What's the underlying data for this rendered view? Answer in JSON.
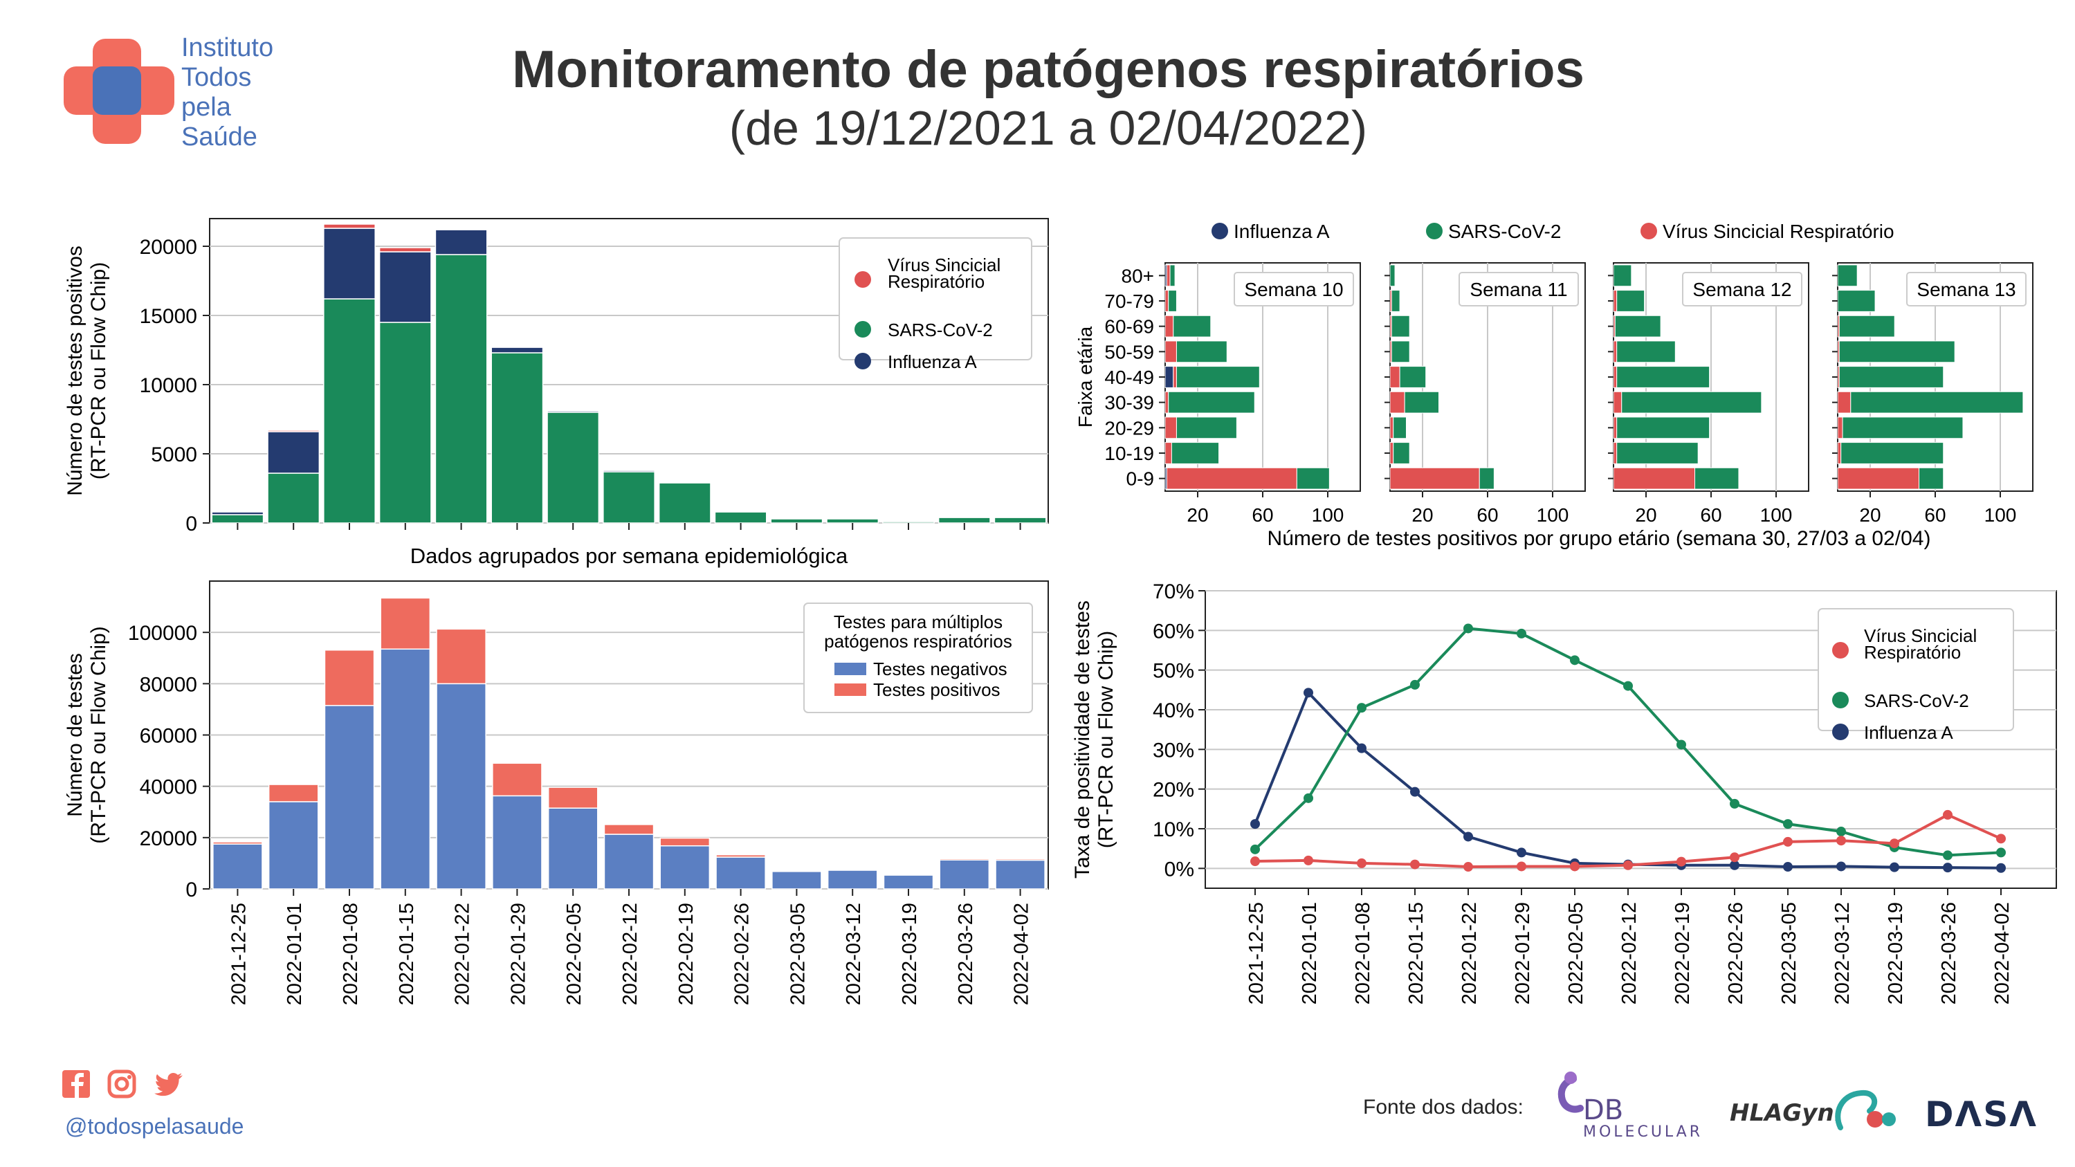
{
  "header": {
    "title": "Monitoramento de patógenos respiratórios",
    "subtitle": "(de 19/12/2021 a 02/04/2022)"
  },
  "logo": {
    "lines": [
      "Instituto",
      "Todos",
      "pela",
      "Saúde"
    ]
  },
  "footer": {
    "handle": "@todospelasaude",
    "source_label": "Fonte dos dados:",
    "social_icons": [
      "facebook-icon",
      "instagram-icon",
      "twitter-icon"
    ],
    "sponsors": [
      {
        "name": "DB",
        "sub": "MOLECULAR"
      },
      {
        "name": "HLAGyn."
      },
      {
        "name": "DΛSΛ"
      }
    ]
  },
  "colors": {
    "vsr": "#e05151",
    "sars": "#1a8a5a",
    "flu": "#243b70",
    "neg": "#5b7fc2",
    "pos": "#ee6b5e",
    "brand_blue": "#4a72b8",
    "brand_red": "#f26c5e"
  },
  "chart_data": [
    {
      "id": "positives_by_week",
      "type": "bar",
      "stacked": true,
      "xlabel": "Dados agrupados por semana epidemiológica",
      "ylabel": [
        "Número de testes positivos",
        "(RT-PCR ou Flow Chip)"
      ],
      "ylim": [
        0,
        22000
      ],
      "yticks": [
        0,
        5000,
        10000,
        15000,
        20000
      ],
      "grid": true,
      "legend_position": "top-right",
      "categories": [
        "2021-12-25",
        "2022-01-01",
        "2022-01-08",
        "2022-01-15",
        "2022-01-22",
        "2022-01-29",
        "2022-02-05",
        "2022-02-12",
        "2022-02-19",
        "2022-02-26",
        "2022-03-05",
        "2022-03-12",
        "2022-03-19",
        "2022-03-26",
        "2022-04-02"
      ],
      "series": [
        {
          "name": "SARS-CoV-2",
          "values": [
            600,
            3600,
            16200,
            14500,
            19400,
            12300,
            8000,
            3700,
            2900,
            800,
            300,
            300,
            100,
            400,
            400
          ]
        },
        {
          "name": "Influenza A",
          "values": [
            200,
            3000,
            5100,
            5100,
            1800,
            400,
            100,
            100,
            50,
            50,
            20,
            10,
            10,
            10,
            10
          ]
        },
        {
          "name": "Vírus Sincicial Respiratório",
          "values": [
            20,
            100,
            300,
            300,
            50,
            20,
            20,
            20,
            50,
            50,
            50,
            50,
            40,
            40,
            30
          ]
        }
      ],
      "legend": [
        "Vírus Sincicial Respiratório",
        "SARS-CoV-2",
        "Influenza A"
      ]
    },
    {
      "id": "tests_by_week",
      "type": "bar",
      "stacked": true,
      "ylabel": [
        "Número de testes",
        "(RT-PCR ou Flow Chip)"
      ],
      "ylim": [
        0,
        120000
      ],
      "yticks": [
        0,
        20000,
        40000,
        60000,
        80000,
        100000
      ],
      "grid": true,
      "legend_title": [
        "Testes para múltiplos",
        "patógenos respiratórios"
      ],
      "legend_position": "top-right",
      "categories": [
        "2021-12-25",
        "2022-01-01",
        "2022-01-08",
        "2022-01-15",
        "2022-01-22",
        "2022-01-29",
        "2022-02-05",
        "2022-02-12",
        "2022-02-19",
        "2022-02-26",
        "2022-03-05",
        "2022-03-12",
        "2022-03-19",
        "2022-03-26",
        "2022-04-02"
      ],
      "series": [
        {
          "name": "Testes negativos",
          "values": [
            17500,
            34000,
            71500,
            93500,
            80000,
            36300,
            31500,
            21300,
            16800,
            12400,
            6800,
            7300,
            5400,
            11300,
            11200
          ]
        },
        {
          "name": "Testes positivos",
          "values": [
            800,
            6700,
            21600,
            19900,
            21300,
            12700,
            8100,
            3800,
            3000,
            900,
            400,
            400,
            200,
            500,
            500
          ]
        }
      ]
    },
    {
      "id": "age_groups",
      "type": "bar",
      "orientation": "horizontal",
      "stacked": true,
      "xlabel": "Número de testes positivos por grupo etário (semana 30, 27/03 a 02/04)",
      "ylabel": "Faixa etária",
      "xlim": [
        0,
        120
      ],
      "xticks": [
        20,
        60,
        100
      ],
      "grid": true,
      "legend": [
        "Influenza A",
        "SARS-CoV-2",
        "Vírus Sincicial Respiratório"
      ],
      "legend_position": "top",
      "categories": [
        "0-9",
        "10-19",
        "20-29",
        "30-39",
        "40-49",
        "50-59",
        "60-69",
        "70-79",
        "80+"
      ],
      "panels": [
        {
          "label": "Semana 10",
          "flu": [
            1,
            0,
            0,
            0,
            5,
            0,
            0,
            0,
            1
          ],
          "vsr": [
            80,
            4,
            7,
            2,
            2,
            7,
            5,
            2,
            2
          ],
          "sars": [
            20,
            29,
            37,
            53,
            51,
            31,
            23,
            5,
            3
          ]
        },
        {
          "label": "Semana 11",
          "flu": [
            0,
            0,
            0,
            0,
            0,
            0,
            0,
            0,
            0
          ],
          "vsr": [
            55,
            2,
            2,
            9,
            6,
            1,
            1,
            1,
            0
          ],
          "sars": [
            9,
            10,
            8,
            21,
            16,
            11,
            11,
            5,
            3
          ]
        },
        {
          "label": "Semana 12",
          "flu": [
            0,
            0,
            0,
            0,
            0,
            0,
            0,
            0,
            0
          ],
          "vsr": [
            50,
            2,
            2,
            5,
            2,
            2,
            1,
            2,
            0
          ],
          "sars": [
            27,
            50,
            57,
            86,
            57,
            36,
            28,
            17,
            11
          ]
        },
        {
          "label": "Semana 13",
          "flu": [
            0,
            0,
            0,
            0,
            0,
            0,
            0,
            0,
            0
          ],
          "vsr": [
            50,
            2,
            3,
            8,
            1,
            1,
            1,
            0,
            0
          ],
          "sars": [
            15,
            63,
            74,
            106,
            64,
            71,
            34,
            23,
            12
          ]
        }
      ]
    },
    {
      "id": "positivity_rate",
      "type": "line",
      "ylabel": [
        "Taxa de positividade de testes",
        "(RT-PCR ou Flow Chip)"
      ],
      "ylim": [
        -0.05,
        0.7
      ],
      "yticks": [
        "0%",
        "10%",
        "20%",
        "30%",
        "40%",
        "50%",
        "60%",
        "70%"
      ],
      "grid": true,
      "legend_position": "top-right",
      "legend": [
        "Vírus Sincicial Respiratório",
        "SARS-CoV-2",
        "Influenza A"
      ],
      "x": [
        "2021-12-25",
        "2022-01-01",
        "2022-01-08",
        "2022-01-15",
        "2022-01-22",
        "2022-01-29",
        "2022-02-05",
        "2022-02-12",
        "2022-02-19",
        "2022-02-26",
        "2022-03-05",
        "2022-03-12",
        "2022-03-19",
        "2022-03-26",
        "2022-04-02"
      ],
      "series": [
        {
          "name": "Vírus Sincicial Respiratório",
          "values": [
            0.018,
            0.02,
            0.013,
            0.01,
            0.004,
            0.005,
            0.005,
            0.008,
            0.017,
            0.028,
            0.067,
            0.07,
            0.063,
            0.135,
            0.075
          ]
        },
        {
          "name": "SARS-CoV-2",
          "values": [
            0.048,
            0.177,
            0.405,
            0.463,
            0.605,
            0.592,
            0.525,
            0.46,
            0.312,
            0.163,
            0.112,
            0.093,
            0.053,
            0.033,
            0.04
          ]
        },
        {
          "name": "Influenza A",
          "values": [
            0.112,
            0.443,
            0.303,
            0.193,
            0.08,
            0.04,
            0.013,
            0.01,
            0.008,
            0.008,
            0.004,
            0.005,
            0.003,
            0.002,
            0.001
          ]
        }
      ]
    }
  ]
}
